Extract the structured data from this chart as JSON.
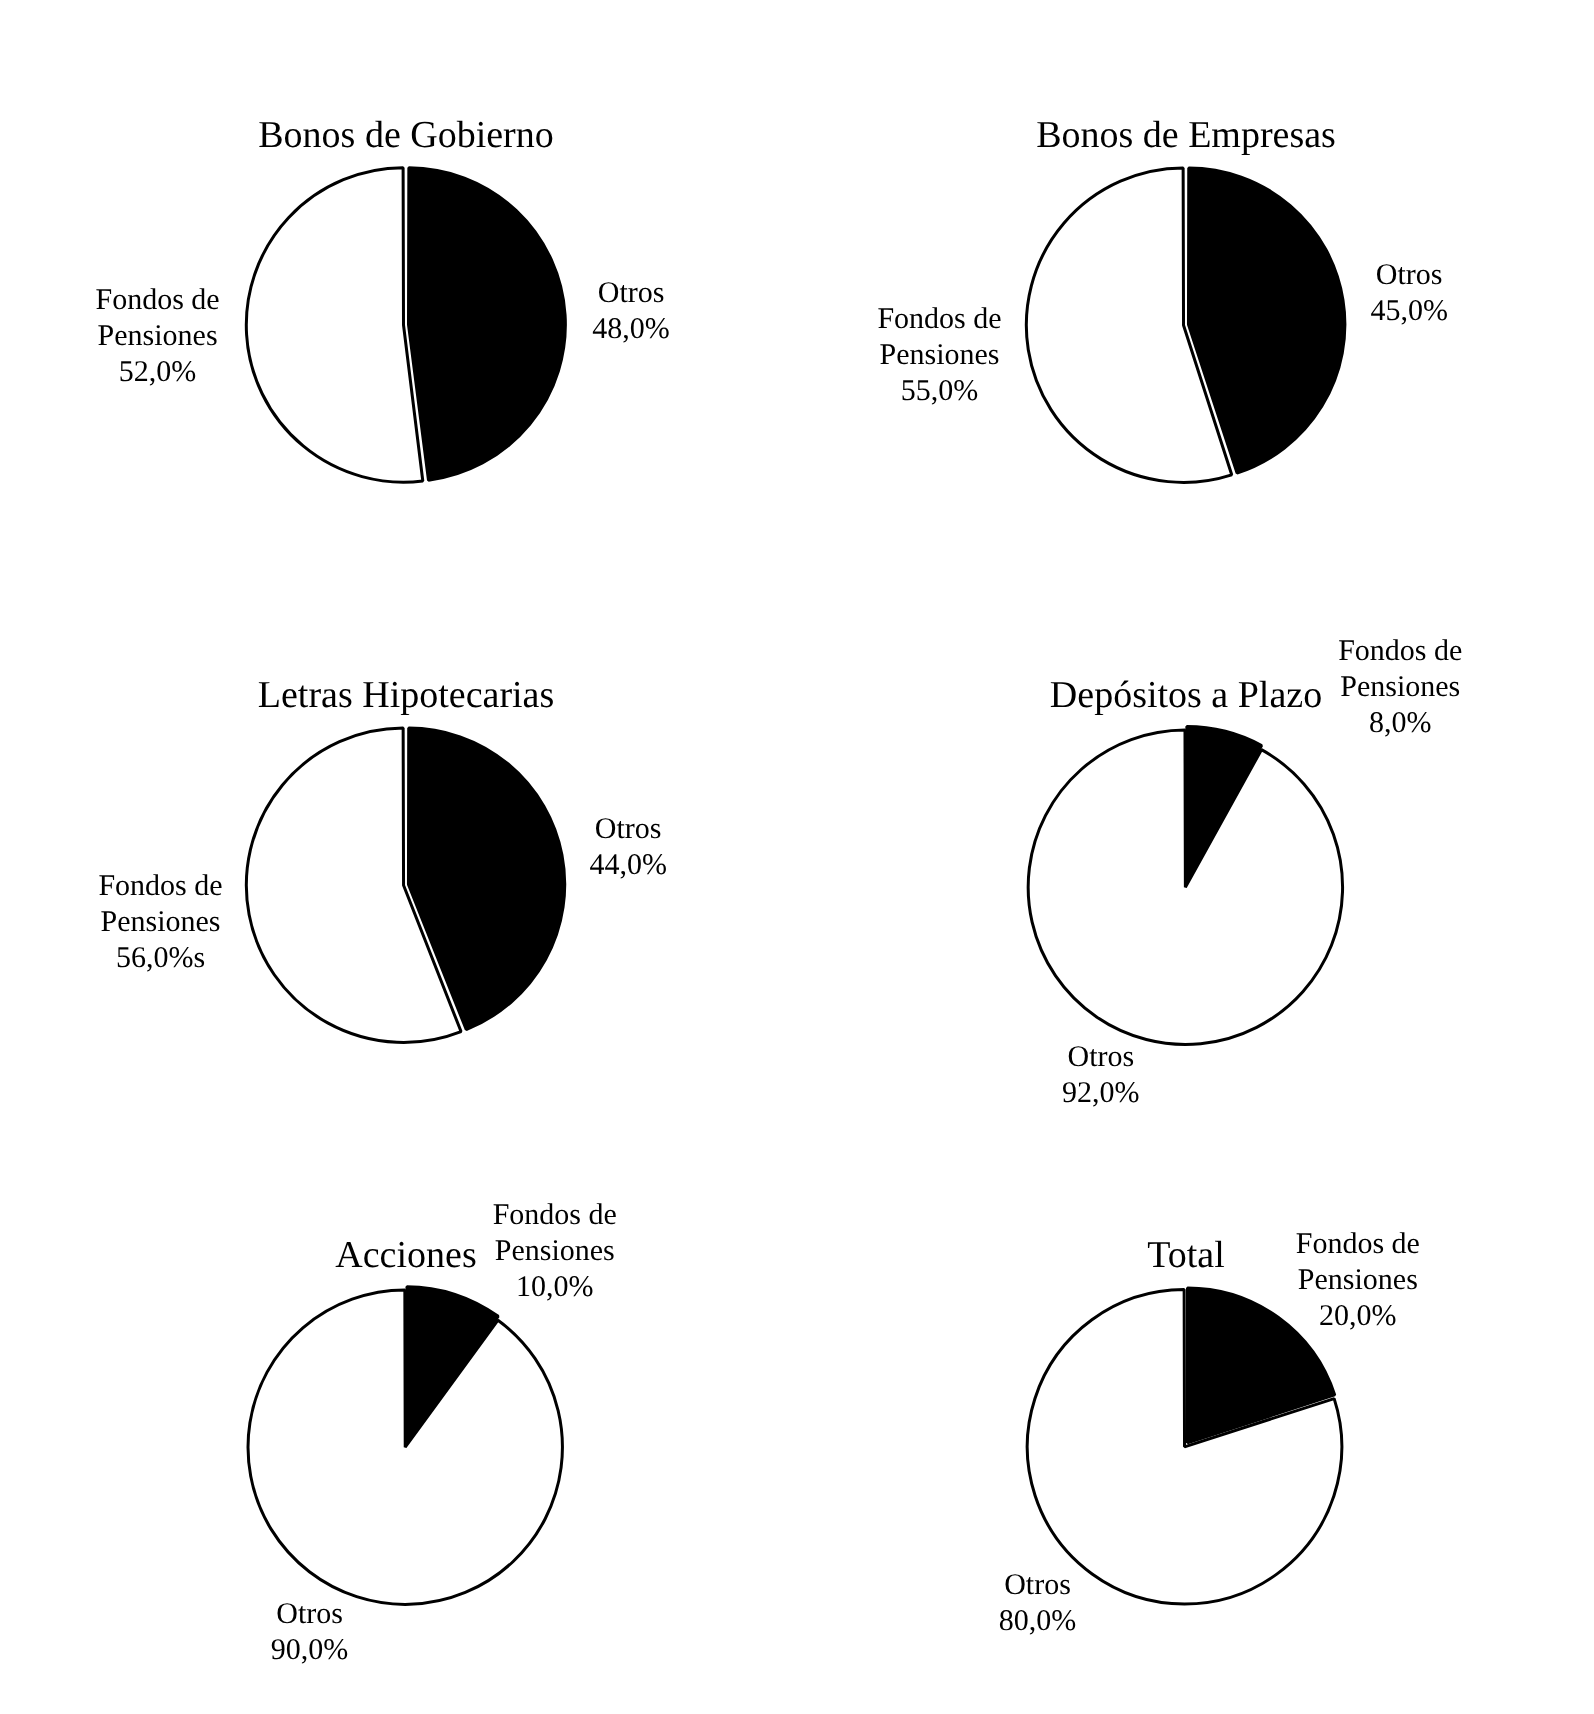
{
  "chart_data": [
    {
      "type": "pie",
      "title": "Bonos de Gobierno",
      "categories": [
        "Otros",
        "Fondos de Pensiones"
      ],
      "values": [
        48,
        52
      ],
      "colors": [
        "#000000",
        "#ffffff"
      ],
      "value_labels": [
        "48,0%",
        "52,0%"
      ]
    },
    {
      "type": "pie",
      "title": "Bonos de Empresas",
      "categories": [
        "Otros",
        "Fondos de Pensiones"
      ],
      "values": [
        45,
        55
      ],
      "colors": [
        "#000000",
        "#ffffff"
      ],
      "value_labels": [
        "45,0%",
        "55,0%"
      ]
    },
    {
      "type": "pie",
      "title": "Letras Hipotecarias",
      "categories": [
        "Otros",
        "Fondos de Pensiones"
      ],
      "values": [
        44,
        56
      ],
      "colors": [
        "#000000",
        "#ffffff"
      ],
      "value_labels": [
        "44,0%",
        "56,0%s"
      ]
    },
    {
      "type": "pie",
      "title": "Depósitos a Plazo",
      "categories": [
        "Fondos de Pensiones",
        "Otros"
      ],
      "values": [
        8,
        92
      ],
      "colors": [
        "#000000",
        "#ffffff"
      ],
      "value_labels": [
        "8,0%",
        "92,0%"
      ]
    },
    {
      "type": "pie",
      "title": "Acciones",
      "categories": [
        "Fondos de Pensiones",
        "Otros"
      ],
      "values": [
        10,
        90
      ],
      "colors": [
        "#000000",
        "#ffffff"
      ],
      "value_labels": [
        "10,0%",
        "90,0%"
      ]
    },
    {
      "type": "pie",
      "title": "Total",
      "categories": [
        "Fondos de Pensiones",
        "Otros"
      ],
      "values": [
        20,
        80
      ],
      "colors": [
        "#000000",
        "#ffffff"
      ],
      "value_labels": [
        "20,0%",
        "80,0%"
      ]
    }
  ]
}
